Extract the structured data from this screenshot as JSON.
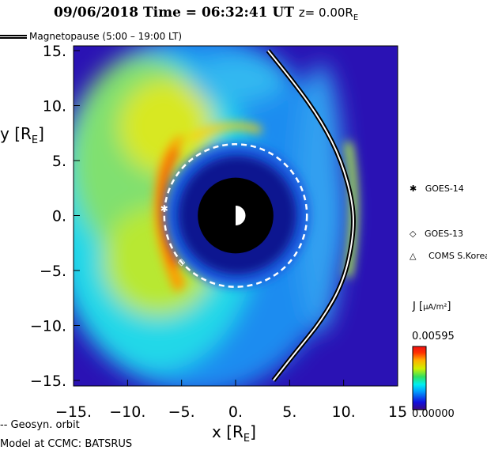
{
  "title": {
    "date": "09/06/2018",
    "time_label": "Time = 06:32:41 UT",
    "z_label": "z= 0.00R",
    "z_sub": "E"
  },
  "legend": {
    "magnetopause": "Magnetopause (5:00 – 19:00 LT)",
    "geosyn": "-- Geosyn. orbit"
  },
  "footer": "Model at CCMC: BATSRUS",
  "colors": {
    "background_blue": "#2a12b4",
    "orbit": "#ffffff",
    "earth": "#000000"
  },
  "chart_data": {
    "type": "heatmap",
    "variable": "J",
    "units": "µA/m²",
    "xlabel": "x [R",
    "xlabel_sub": "E",
    "ylabel": "y [R",
    "ylabel_sub": "E",
    "xlim": [
      -15,
      15
    ],
    "ylim": [
      -15,
      15
    ],
    "xticks": [
      -15,
      -10,
      -5,
      0,
      5,
      10,
      15
    ],
    "xtick_labels": [
      "−15.",
      "−10.",
      "−5.",
      "0.",
      "5.",
      "10.",
      "15"
    ],
    "yticks": [
      15,
      10,
      5,
      0,
      -5,
      -10,
      -15
    ],
    "ytick_labels": [
      "15.",
      "10.",
      "5.",
      "0.",
      "−5.",
      "−10.",
      "−15."
    ],
    "colorbar": {
      "min": 0.0,
      "max": 0.00595,
      "min_label": "0.00000",
      "max_label": "0.00595",
      "label": "J"
    },
    "earth_radius_RE": 3.5,
    "geosyn_orbit_radius_RE": 6.6,
    "magnetopause": [
      [
        3.0,
        15
      ],
      [
        5.5,
        12
      ],
      [
        8.0,
        8.5
      ],
      [
        9.8,
        5
      ],
      [
        10.9,
        1
      ],
      [
        10.9,
        -2
      ],
      [
        10.0,
        -6
      ],
      [
        8.0,
        -9.5
      ],
      [
        5.5,
        -12.5
      ],
      [
        3.5,
        -15
      ]
    ],
    "satellites": [
      {
        "name": "GOES-14",
        "marker": "✱",
        "x": -6.6,
        "y": 0.6
      },
      {
        "name": "GOES-13",
        "marker": "◇",
        "x": -5.0,
        "y": -4.2
      },
      {
        "name": "COMS S.Korea",
        "marker": "△",
        "x": null,
        "y": null
      }
    ]
  }
}
